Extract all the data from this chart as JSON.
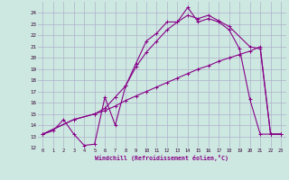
{
  "xlabel": "Windchill (Refroidissement éolien,°C)",
  "xlim": [
    -0.5,
    23.5
  ],
  "ylim": [
    12,
    25
  ],
  "xticks": [
    0,
    1,
    2,
    3,
    4,
    5,
    6,
    7,
    8,
    9,
    10,
    11,
    12,
    13,
    14,
    15,
    16,
    17,
    18,
    19,
    20,
    21,
    22,
    23
  ],
  "yticks": [
    12,
    13,
    14,
    15,
    16,
    17,
    18,
    19,
    20,
    21,
    22,
    23,
    24
  ],
  "background_color": "#cce8e0",
  "grid_color": "#b0b0cc",
  "line_color": "#880088",
  "line1_x": [
    0,
    1,
    2,
    3,
    4,
    5,
    6,
    7,
    8,
    9,
    10,
    11,
    12,
    13,
    14,
    15,
    16,
    17,
    18,
    19,
    20,
    21,
    22,
    23
  ],
  "line1_y": [
    13.2,
    13.5,
    14.5,
    13.2,
    12.2,
    12.3,
    16.5,
    14.0,
    17.5,
    19.5,
    21.5,
    22.2,
    23.2,
    23.2,
    24.5,
    23.2,
    23.5,
    23.2,
    22.5,
    20.8,
    16.3,
    13.2,
    13.2,
    13.2
  ],
  "line2_x": [
    0,
    3,
    5,
    6,
    7,
    8,
    9,
    10,
    11,
    12,
    13,
    14,
    15,
    16,
    17,
    18,
    20,
    21,
    22,
    23
  ],
  "line2_y": [
    13.2,
    14.5,
    15.0,
    15.5,
    16.5,
    17.5,
    19.2,
    20.5,
    21.5,
    22.5,
    23.2,
    23.8,
    23.5,
    23.8,
    23.3,
    22.8,
    21.0,
    20.8,
    13.2,
    13.2
  ],
  "line3_x": [
    0,
    3,
    5,
    6,
    7,
    8,
    9,
    10,
    11,
    12,
    13,
    14,
    15,
    16,
    17,
    18,
    19,
    20,
    21,
    22,
    23
  ],
  "line3_y": [
    13.2,
    14.5,
    15.0,
    15.3,
    15.7,
    16.2,
    16.6,
    17.0,
    17.4,
    17.8,
    18.2,
    18.6,
    19.0,
    19.3,
    19.7,
    20.0,
    20.3,
    20.6,
    21.0,
    13.2,
    13.2
  ]
}
